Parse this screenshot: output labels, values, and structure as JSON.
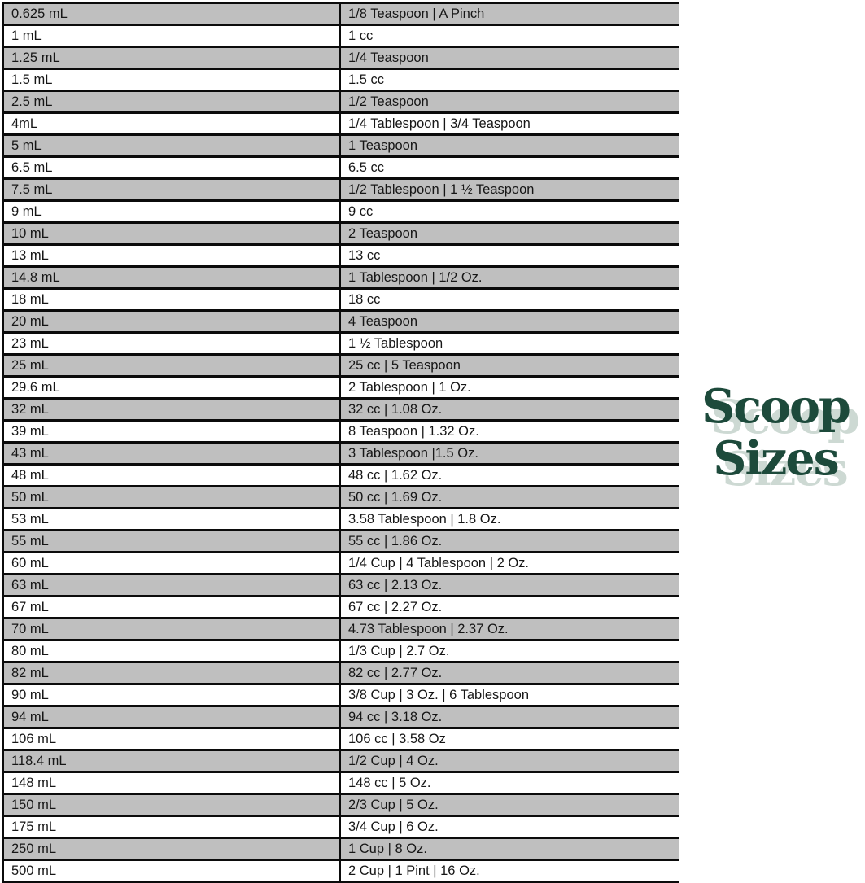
{
  "logo": {
    "line1": "Scoop",
    "line2": "Sizes",
    "color": "#1d4a3b",
    "shadow_color": "#cdd9d3"
  },
  "chart_data": {
    "type": "table",
    "title": "Scoop Sizes",
    "rows": [
      [
        "0.625 mL",
        "1/8 Teaspoon | A Pinch"
      ],
      [
        "1 mL",
        "1 cc"
      ],
      [
        "1.25 mL",
        "1/4 Teaspoon"
      ],
      [
        "1.5 mL",
        "1.5 cc"
      ],
      [
        "2.5 mL",
        "1/2 Teaspoon"
      ],
      [
        "4mL",
        "1/4 Tablespoon | 3/4 Teaspoon"
      ],
      [
        "5 mL",
        "1 Teaspoon"
      ],
      [
        "6.5 mL",
        "6.5 cc"
      ],
      [
        "7.5 mL",
        "1/2 Tablespoon | 1 ½ Teaspoon"
      ],
      [
        "9 mL",
        "9 cc"
      ],
      [
        "10 mL",
        "2 Teaspoon"
      ],
      [
        "13 mL",
        "13 cc"
      ],
      [
        "14.8 mL",
        "1 Tablespoon | 1/2 Oz."
      ],
      [
        "18 mL",
        "18 cc"
      ],
      [
        "20 mL",
        "4 Teaspoon"
      ],
      [
        "23 mL",
        "1 ½ Tablespoon"
      ],
      [
        "25 mL",
        "25 cc | 5 Teaspoon"
      ],
      [
        "29.6 mL",
        "2 Tablespoon | 1 Oz."
      ],
      [
        "32 mL",
        "32 cc | 1.08 Oz."
      ],
      [
        "39 mL",
        "8 Teaspoon | 1.32 Oz."
      ],
      [
        "43 mL",
        "3 Tablespoon |1.5 Oz."
      ],
      [
        "48 mL",
        "48 cc | 1.62 Oz."
      ],
      [
        "50 mL",
        "50 cc | 1.69 Oz."
      ],
      [
        "53 mL",
        "3.58 Tablespoon | 1.8 Oz."
      ],
      [
        "55 mL",
        "55 cc | 1.86 Oz."
      ],
      [
        "60 mL",
        "1/4 Cup | 4 Tablespoon | 2 Oz."
      ],
      [
        "63 mL",
        "63 cc | 2.13 Oz."
      ],
      [
        "67 mL",
        "67 cc | 2.27 Oz."
      ],
      [
        "70 mL",
        "4.73 Tablespoon | 2.37 Oz."
      ],
      [
        "80 mL",
        "1/3 Cup | 2.7 Oz."
      ],
      [
        "82 mL",
        "82 cc | 2.77 Oz."
      ],
      [
        "90 mL",
        "3/8 Cup | 3 Oz. | 6 Tablespoon"
      ],
      [
        "94 mL",
        "94 cc | 3.18 Oz."
      ],
      [
        "106 mL",
        "106 cc | 3.58 Oz"
      ],
      [
        "118.4 mL",
        "1/2 Cup | 4 Oz."
      ],
      [
        "148 mL",
        "148 cc | 5 Oz."
      ],
      [
        "150 mL",
        "2/3 Cup | 5 Oz."
      ],
      [
        "175 mL",
        "3/4 Cup | 6 Oz."
      ],
      [
        "250 mL",
        "1 Cup | 8 Oz."
      ],
      [
        "500 mL",
        "2 Cup | 1 Pint | 16 Oz."
      ]
    ],
    "layout": {
      "alternating_row_shading": true,
      "first_row_shaded": true,
      "shaded_row_color": "#bfbfbf",
      "unshaded_row_color": "#ffffff",
      "border_color": "#0b0b0b",
      "text_color": "#161616",
      "grid": true,
      "right_outer_border": false
    }
  }
}
